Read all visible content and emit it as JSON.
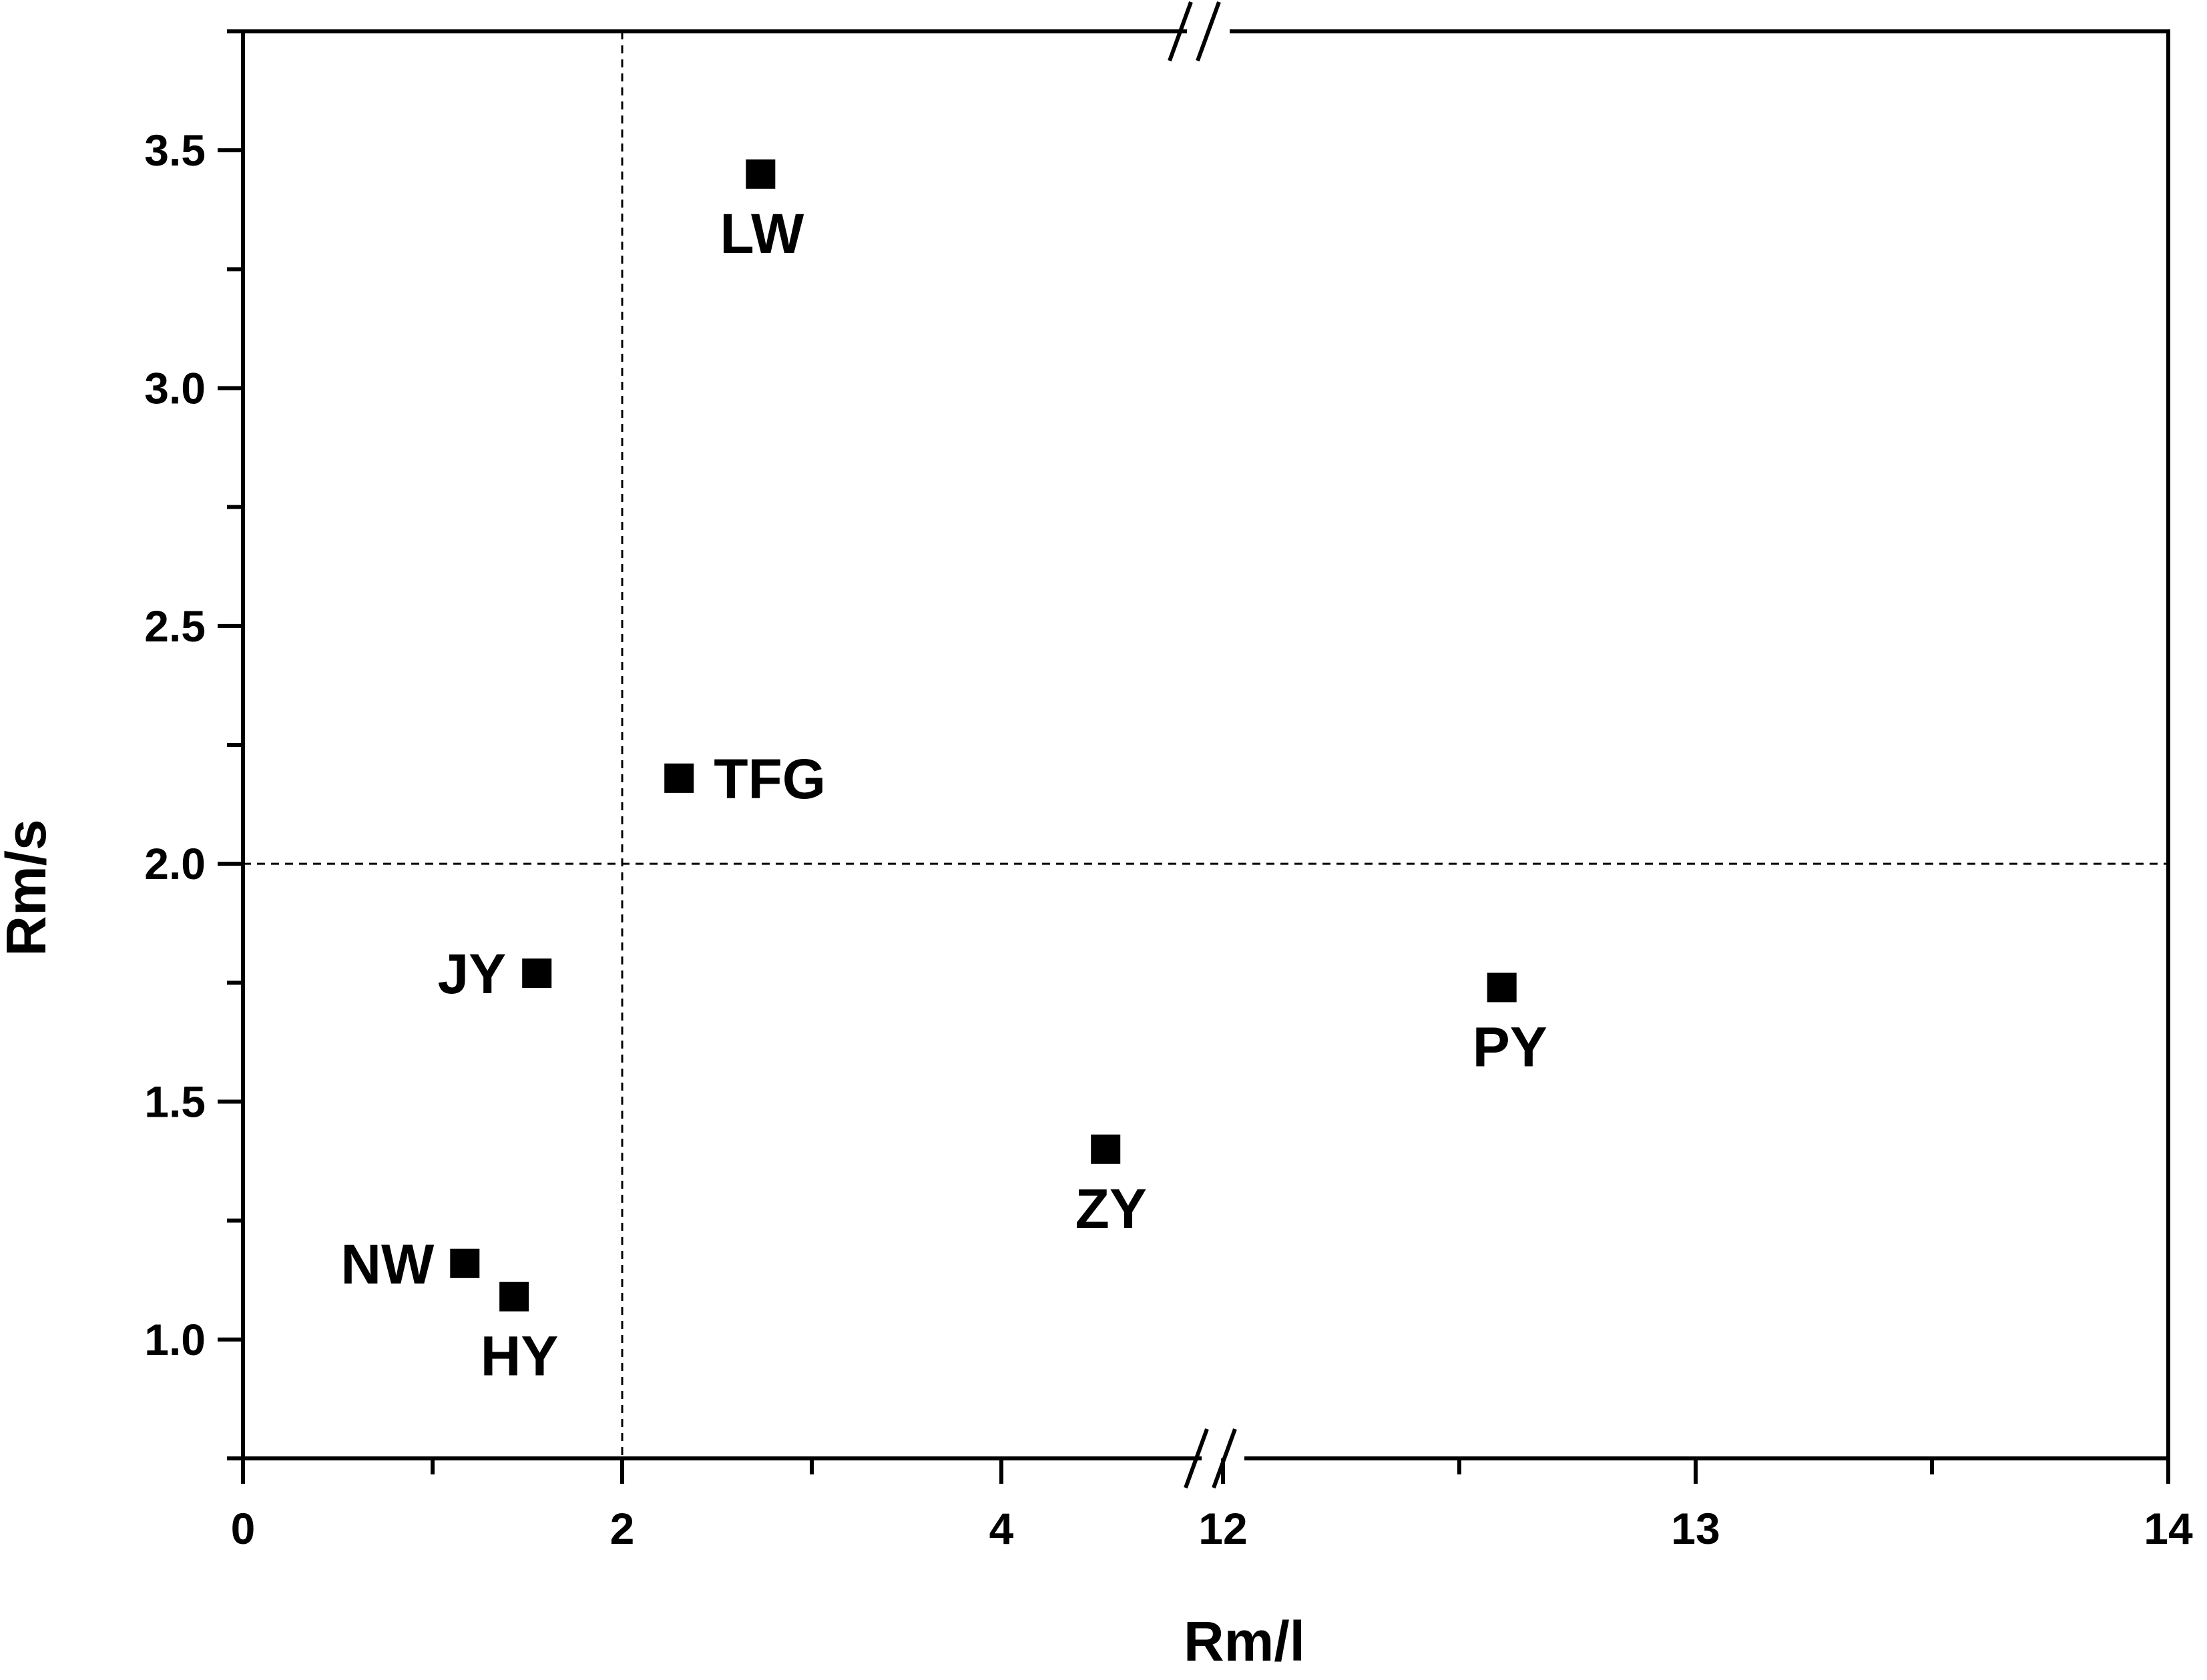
{
  "chart_data": {
    "type": "scatter",
    "title": "",
    "xlabel": "Rm/l",
    "ylabel": "Rm/s",
    "x_axis_break": {
      "from": 5,
      "to": 12
    },
    "xlim_segments": [
      [
        0,
        5
      ],
      [
        12,
        14
      ]
    ],
    "ylim": [
      0.75,
      3.75
    ],
    "x_ticks": [
      0,
      2,
      4,
      12,
      13,
      14
    ],
    "x_tick_labels": [
      "0",
      "2",
      "4",
      "12",
      "13",
      "14"
    ],
    "x_minor_ticks": [
      1,
      3,
      12.5,
      13.5
    ],
    "y_ticks": [
      1.0,
      1.5,
      2.0,
      2.5,
      3.0,
      3.5
    ],
    "y_tick_labels": [
      "1.0",
      "1.5",
      "2.0",
      "2.5",
      "3.0",
      "3.5"
    ],
    "y_minor_ticks": [
      1.25,
      1.75,
      2.25,
      2.75,
      3.25
    ],
    "reference_lines": {
      "x": 2,
      "y": 2.0,
      "style": "dashed"
    },
    "marker": {
      "shape": "square",
      "color": "#000000"
    },
    "grid": false,
    "points": [
      {
        "label": "LW",
        "x": 2.73,
        "y": 3.45
      },
      {
        "label": "TFG",
        "x": 2.3,
        "y": 2.18
      },
      {
        "label": "JY",
        "x": 1.55,
        "y": 1.77
      },
      {
        "label": "NW",
        "x": 1.17,
        "y": 1.16
      },
      {
        "label": "HY",
        "x": 1.43,
        "y": 1.09
      },
      {
        "label": "ZY",
        "x": 4.55,
        "y": 1.4
      },
      {
        "label": "PY",
        "x": 12.59,
        "y": 1.74
      }
    ]
  }
}
